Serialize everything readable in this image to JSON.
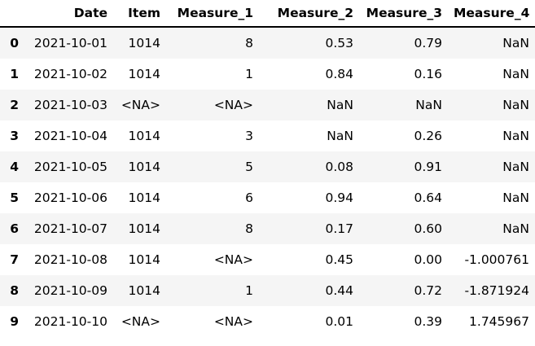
{
  "colors": {
    "stripe_background": "#f5f5f5",
    "row_background": "#ffffff",
    "header_border": "#000000",
    "text": "#000000"
  },
  "chart_data": {
    "type": "table",
    "title": "",
    "index_label": "",
    "columns": [
      "Date",
      "Item",
      "Measure_1",
      "Measure_2",
      "Measure_3",
      "Measure_4"
    ],
    "index": [
      "0",
      "1",
      "2",
      "3",
      "4",
      "5",
      "6",
      "7",
      "8",
      "9"
    ],
    "rows": [
      [
        "2021-10-01",
        "1014",
        "8",
        "0.53",
        "0.79",
        "NaN"
      ],
      [
        "2021-10-02",
        "1014",
        "1",
        "0.84",
        "0.16",
        "NaN"
      ],
      [
        "2021-10-03",
        "<NA>",
        "<NA>",
        "NaN",
        "NaN",
        "NaN"
      ],
      [
        "2021-10-04",
        "1014",
        "3",
        "NaN",
        "0.26",
        "NaN"
      ],
      [
        "2021-10-05",
        "1014",
        "5",
        "0.08",
        "0.91",
        "NaN"
      ],
      [
        "2021-10-06",
        "1014",
        "6",
        "0.94",
        "0.64",
        "NaN"
      ],
      [
        "2021-10-07",
        "1014",
        "8",
        "0.17",
        "0.60",
        "NaN"
      ],
      [
        "2021-10-08",
        "1014",
        "<NA>",
        "0.45",
        "0.00",
        "-1.000761"
      ],
      [
        "2021-10-09",
        "1014",
        "1",
        "0.44",
        "0.72",
        "-1.871924"
      ],
      [
        "2021-10-10",
        "<NA>",
        "<NA>",
        "0.01",
        "0.39",
        "1.745967"
      ]
    ],
    "column_alignment": "right",
    "striped_rows": "even-index-shaded"
  }
}
